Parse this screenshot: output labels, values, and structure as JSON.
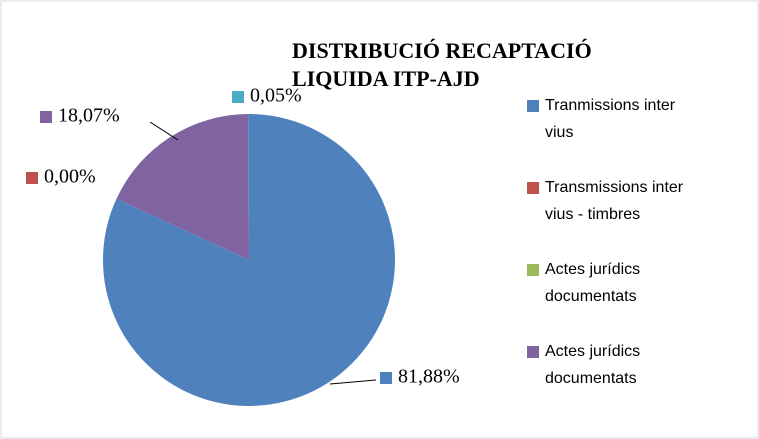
{
  "chart_data": {
    "type": "pie",
    "title": [
      "DISTRIBUCIÓ RECAPTACIÓ",
      "LIQUIDA  ITP-AJD"
    ],
    "categories": [
      "Tranmissions inter vius",
      "Transmissions inter vius - timbres",
      "Actes jurídics documentats",
      "Actes jurídics documentats",
      null
    ],
    "values": [
      81.88,
      0.0,
      0,
      18.07,
      0.05
    ],
    "value_labels": [
      "81,88%",
      "0,00%",
      null,
      "18,07%",
      "0,05%"
    ],
    "colors": [
      "#4f81bd",
      "#c0504d",
      "#9bbb59",
      "#8064a2",
      "#4bacc6"
    ],
    "legend": "right"
  }
}
